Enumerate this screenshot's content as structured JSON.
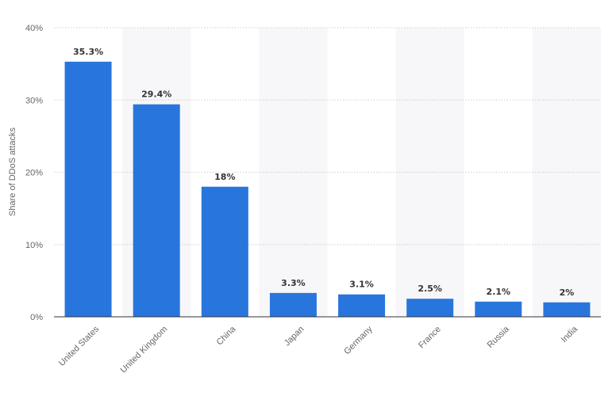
{
  "chart_data": {
    "type": "bar",
    "title": "",
    "xlabel": "",
    "ylabel": "Share of DDoS attacks",
    "categories": [
      "United States",
      "United Kingdom",
      "China",
      "Japan",
      "Germany",
      "France",
      "Russia",
      "India"
    ],
    "values": [
      35.3,
      29.4,
      18,
      3.3,
      3.1,
      2.5,
      2.1,
      2
    ],
    "data_labels": [
      "35.3%",
      "29.4%",
      "18%",
      "3.3%",
      "3.1%",
      "2.5%",
      "2.1%",
      "2%"
    ],
    "ylim": [
      0,
      40
    ],
    "yticks": [
      0,
      10,
      20,
      30,
      40
    ],
    "ytick_labels": [
      "0%",
      "10%",
      "20%",
      "30%",
      "40%"
    ],
    "grid": true,
    "bar_color": "#2876dd",
    "alt_band_color": "#f7f7f9"
  }
}
